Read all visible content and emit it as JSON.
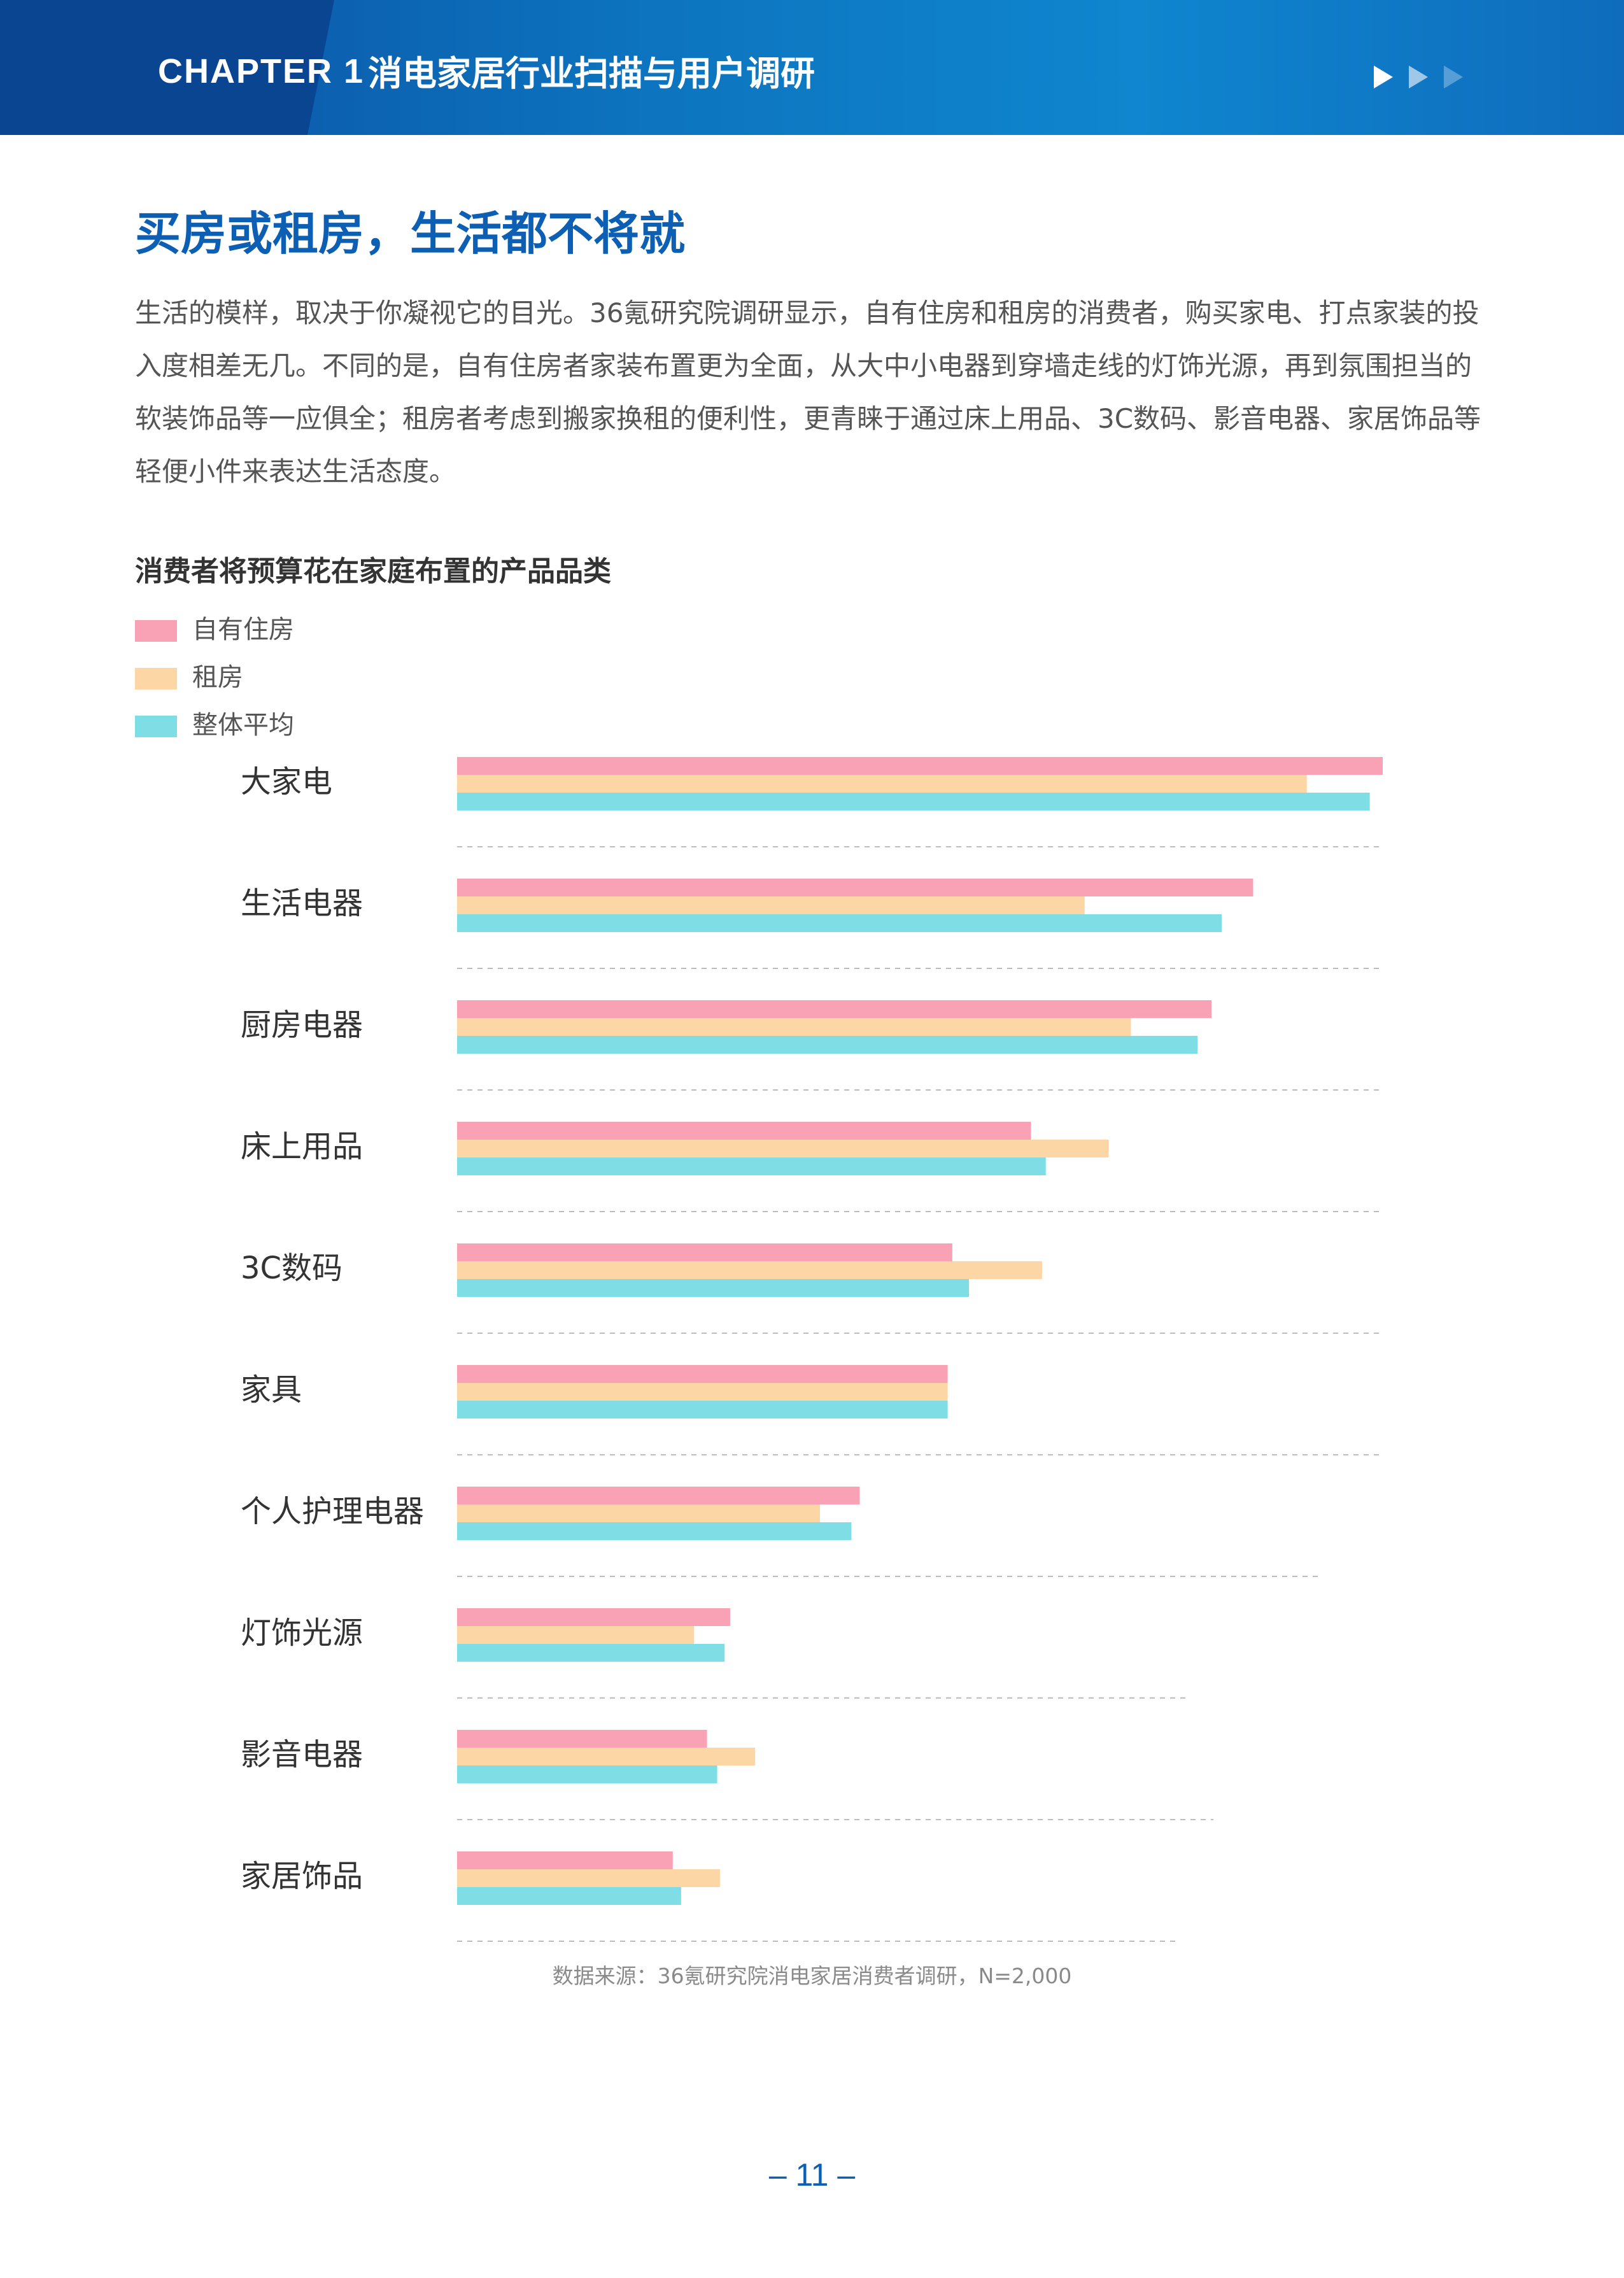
{
  "header": {
    "chapter": "CHAPTER 1",
    "title": "消电家居行业扫描与用户调研"
  },
  "section": {
    "title": "买房或租房，生活都不将就",
    "intro": "生活的模样，取决于你凝视它的目光。36氪研究院调研显示，自有住房和租房的消费者，购买家电、打点家装的投入度相差无几。不同的是，自有住房者家装布置更为全面，从大中小电器到穿墙走线的灯饰光源，再到氛围担当的软装饰品等一应俱全；租房者考虑到搬家换租的便利性，更青睐于通过床上用品、3C数码、影音电器、家居饰品等轻便小件来表达生活态度。"
  },
  "chart_data": {
    "type": "bar",
    "orientation": "horizontal",
    "title": "消费者将预算花在家庭布置的产品品类",
    "categories": [
      "大家电",
      "生活电器",
      "厨房电器",
      "床上用品",
      "3C数码",
      "家具",
      "个人护理电器",
      "灯饰光源",
      "影音电器",
      "家居饰品"
    ],
    "series": [
      {
        "name": "自有住房",
        "color": "#f9a2b5",
        "values": [
          100,
          86,
          81.5,
          62,
          53.5,
          53,
          43.5,
          29.5,
          27,
          23.3
        ]
      },
      {
        "name": "租房",
        "color": "#fdd6a6",
        "values": [
          91.8,
          67.8,
          72.8,
          70.4,
          63.2,
          53,
          39.2,
          25.6,
          32.2,
          28.4
        ]
      },
      {
        "name": "整体平均",
        "color": "#7fdde6",
        "values": [
          98.6,
          82.6,
          80,
          63.6,
          55.3,
          53,
          42.6,
          28.9,
          28.1,
          24.2
        ]
      }
    ],
    "xlim": [
      0,
      100
    ],
    "grid": "dashed separators between categories",
    "legend": "top-left"
  },
  "source": "数据来源：36氪研究院消电家居消费者调研，N=2,000",
  "page_number": "– 11 –"
}
